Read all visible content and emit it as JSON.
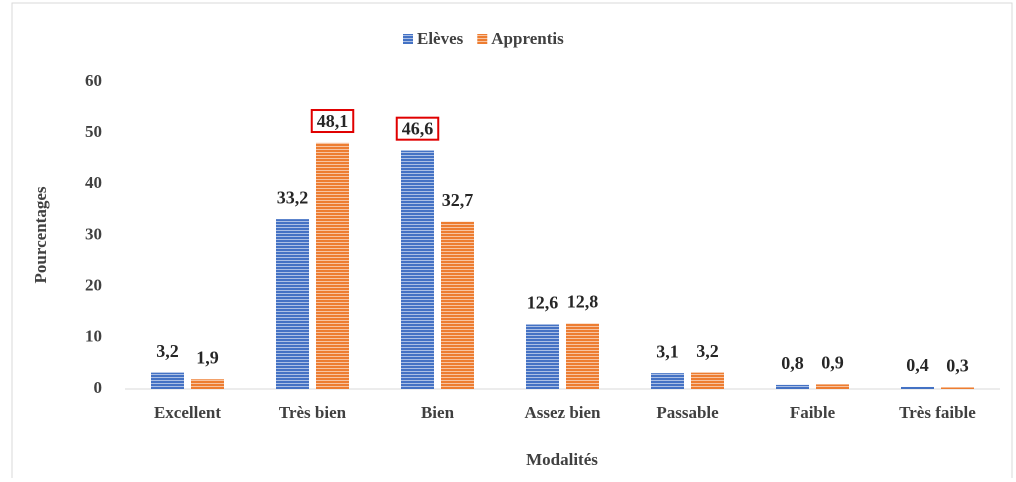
{
  "chart_data": {
    "type": "bar",
    "categories": [
      "Excellent",
      "Très bien",
      "Bien",
      "Assez bien",
      "Passable",
      "Faible",
      "Très faible"
    ],
    "series": [
      {
        "name": "Elèves",
        "color": "#4472c4",
        "values": [
          3.2,
          33.2,
          46.6,
          12.6,
          3.1,
          0.8,
          0.4
        ],
        "value_labels": [
          "3,2",
          "33,2",
          "46,6",
          "12,6",
          "3,1",
          "0,8",
          "0,4"
        ],
        "boxed": [
          2
        ]
      },
      {
        "name": "Apprentis",
        "color": "#ed7d31",
        "values": [
          1.9,
          48.1,
          32.7,
          12.8,
          3.2,
          0.9,
          0.3
        ],
        "value_labels": [
          "1,9",
          "48,1",
          "32,7",
          "12,8",
          "3,2",
          "0,9",
          "0,3"
        ],
        "boxed": [
          1
        ]
      }
    ],
    "box_color": "#e00000",
    "ylim": [
      0,
      60
    ],
    "yticks": [
      0,
      10,
      20,
      30,
      40,
      50,
      60
    ],
    "xlabel": "Modalités",
    "ylabel": "Pourcentages",
    "legend": "top",
    "grid": false
  }
}
